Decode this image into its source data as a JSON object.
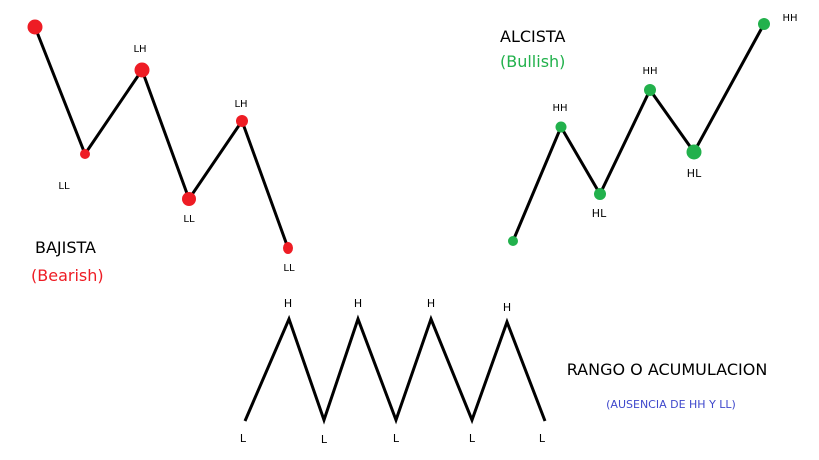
{
  "bearish": {
    "title": "BAJISTA",
    "subtitle": "(Bearish)",
    "color": "#ee1c24",
    "point_labels": [
      "LH",
      "LL",
      "LH",
      "LL",
      "LL"
    ]
  },
  "bullish": {
    "title": "ALCISTA",
    "subtitle": "(Bullish)",
    "color": "#22b14c",
    "point_labels": [
      "HH",
      "HL",
      "HH",
      "HL",
      "HH"
    ]
  },
  "range": {
    "title": "RANGO O ACUMULACION",
    "subtitle": "(AUSENCIA DE HH Y LL)",
    "subtitle_color": "#3f48cc",
    "high_labels": [
      "H",
      "H",
      "H",
      "H"
    ],
    "low_labels": [
      "L",
      "L",
      "L",
      "L",
      "L"
    ]
  },
  "line_color": "#000000"
}
